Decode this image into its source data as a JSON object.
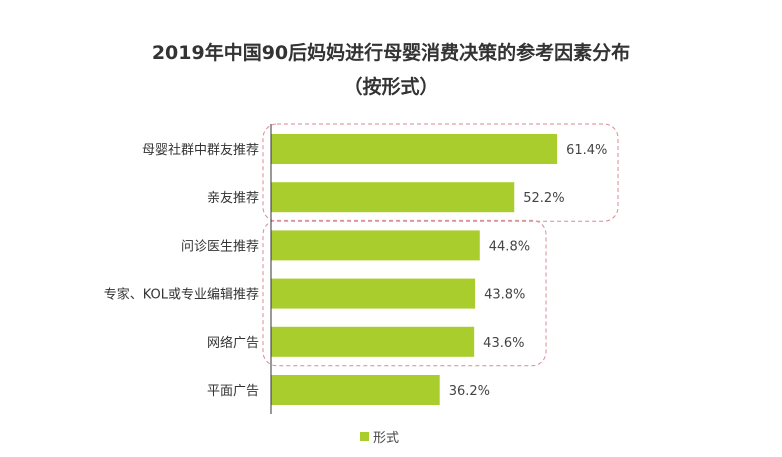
{
  "chart_data": {
    "type": "bar",
    "orientation": "horizontal",
    "title": "2019年中国90后妈妈进行母婴消费决策的参考因素分布",
    "subtitle": "（按形式）",
    "categories": [
      "母婴社群中群友推荐",
      "亲友推荐",
      "问诊医生推荐",
      "专家、KOL或专业编辑推荐",
      "网络广告",
      "平面广告"
    ],
    "series": [
      {
        "name": "形式",
        "values": [
          61.4,
          52.2,
          44.8,
          43.8,
          43.6,
          36.2
        ],
        "labels": [
          "61.4%",
          "52.2%",
          "44.8%",
          "43.8%",
          "43.6%",
          "36.2%"
        ]
      }
    ],
    "xlim": [
      0,
      100
    ],
    "grid": false,
    "legend_position": "bottom",
    "highlight_groups": [
      [
        0,
        1
      ],
      [
        2,
        3,
        4
      ]
    ],
    "colors": {
      "bar": "#a9cd2d",
      "highlight_border": "#d98a94",
      "axis": "#333333"
    }
  }
}
